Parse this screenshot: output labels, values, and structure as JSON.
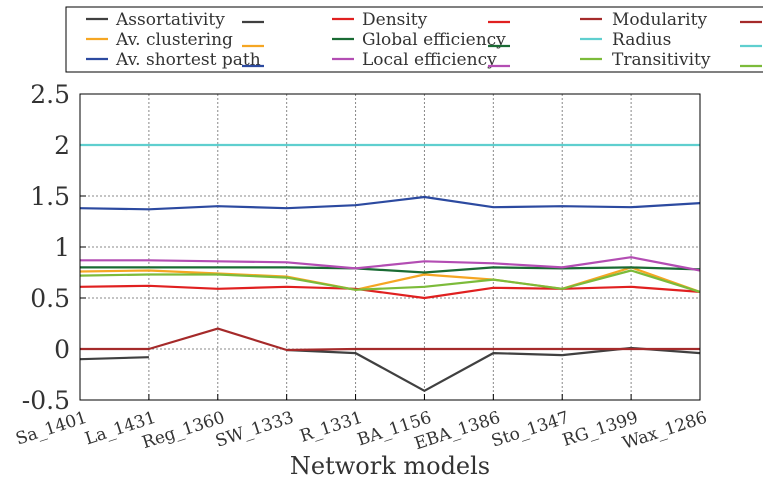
{
  "chart_data": {
    "type": "line",
    "title": "",
    "xlabel": "Network models",
    "ylabel": "",
    "categories": [
      "Sa_1401",
      "La_1431",
      "Reg_1360",
      "SW_1333",
      "R_1331",
      "BA_1156",
      "EBA_1386",
      "Sto_1347",
      "RG_1399",
      "Wax_1286"
    ],
    "ylim": [
      -0.5,
      2.5
    ],
    "yticks": [
      "-0.5",
      "0",
      "0.5",
      "1",
      "1.5",
      "2",
      "2.5"
    ],
    "grid": true,
    "legend_position": "top",
    "series": [
      {
        "name": "Assortativity",
        "color": "#404040",
        "values": [
          -0.1,
          -0.08,
          null,
          -0.01,
          -0.04,
          -0.41,
          -0.04,
          -0.06,
          0.01,
          -0.04
        ]
      },
      {
        "name": "Av. clustering",
        "color": "#f5a623",
        "values": [
          0.76,
          0.77,
          0.74,
          0.71,
          0.58,
          0.73,
          0.68,
          0.59,
          0.8,
          0.56
        ]
      },
      {
        "name": "Av. shortest path",
        "color": "#2c4aa0",
        "values": [
          1.38,
          1.37,
          1.4,
          1.38,
          1.41,
          1.49,
          1.39,
          1.4,
          1.39,
          1.43
        ]
      },
      {
        "name": "Density",
        "color": "#e02020",
        "values": [
          0.61,
          0.62,
          0.59,
          0.61,
          0.59,
          0.5,
          0.6,
          0.59,
          0.61,
          0.56
        ]
      },
      {
        "name": "Global efficiency",
        "color": "#1a6b34",
        "values": [
          0.8,
          0.8,
          0.8,
          0.8,
          0.79,
          0.75,
          0.8,
          0.79,
          0.8,
          0.78
        ]
      },
      {
        "name": "Local efficiency",
        "color": "#b34db3",
        "values": [
          0.87,
          0.87,
          0.86,
          0.85,
          0.79,
          0.86,
          0.84,
          0.8,
          0.9,
          0.77
        ]
      },
      {
        "name": "Modularity",
        "color": "#a52a2a",
        "values": [
          0.0,
          0.0,
          0.2,
          -0.01,
          0.0,
          0.0,
          0.0,
          0.0,
          0.0,
          0.0
        ]
      },
      {
        "name": "Radius",
        "color": "#5fcfcf",
        "values": [
          2,
          2,
          2,
          2,
          2,
          2,
          2,
          2,
          2,
          2
        ]
      },
      {
        "name": "Transitivity",
        "color": "#7cbb3a",
        "values": [
          0.72,
          0.73,
          0.73,
          0.7,
          0.58,
          0.61,
          0.68,
          0.59,
          0.77,
          0.56
        ]
      }
    ]
  }
}
